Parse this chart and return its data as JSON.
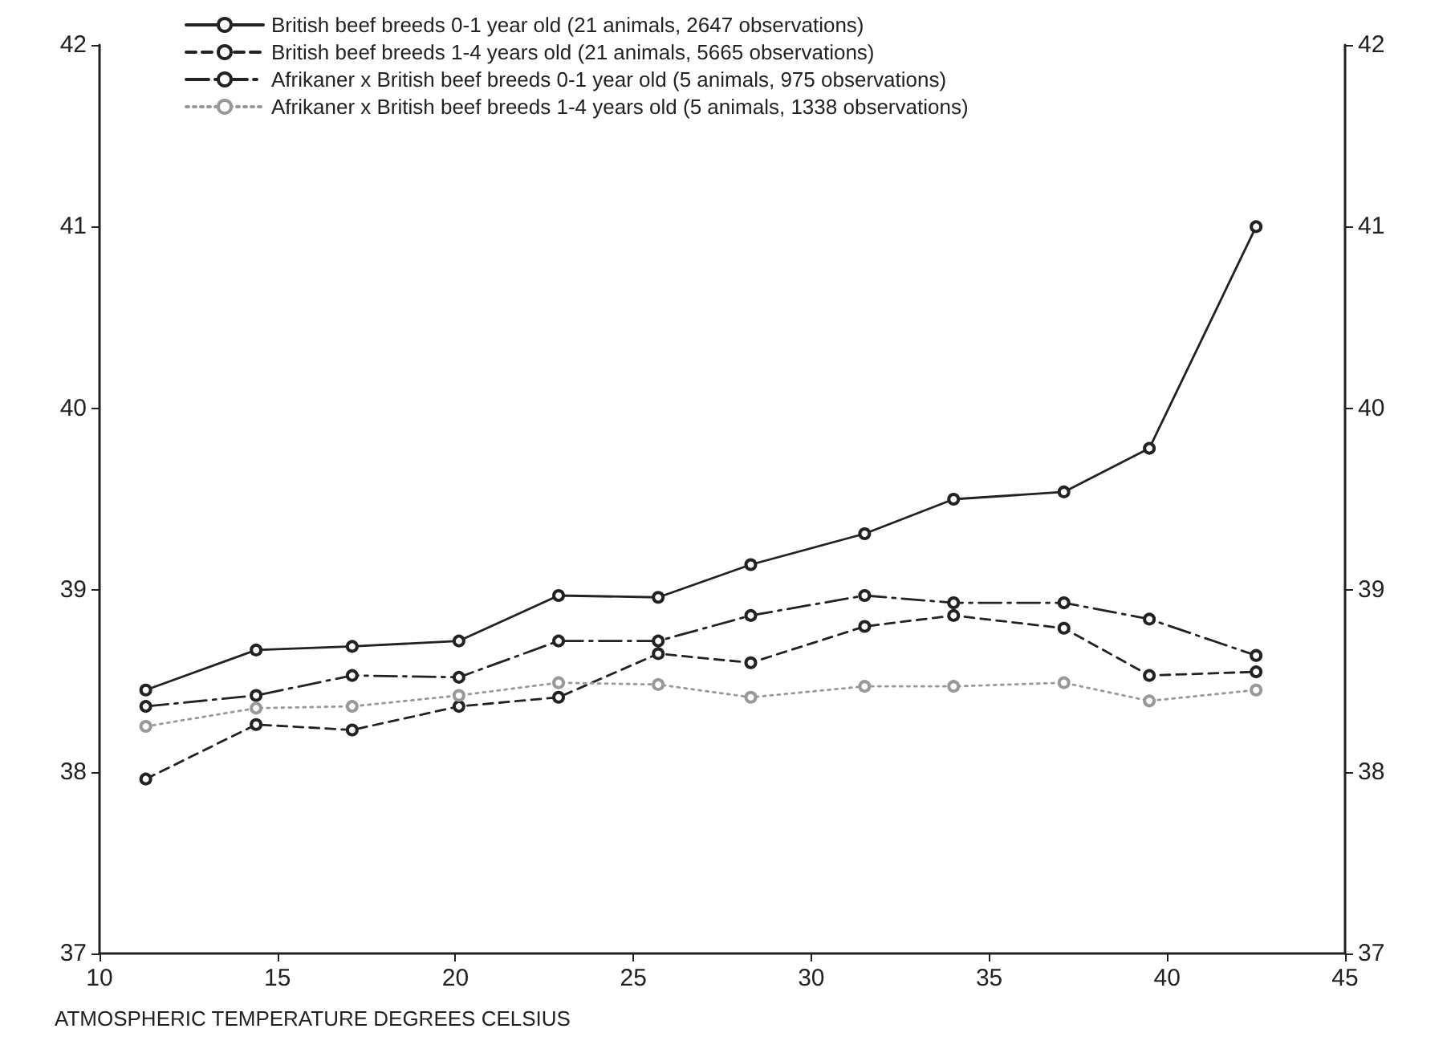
{
  "chart_data": {
    "type": "line",
    "xlabel": "ATMOSPHERIC TEMPERATURE DEGREES CELSIUS",
    "xlim": [
      10,
      45
    ],
    "xticks": [
      10,
      15,
      20,
      25,
      30,
      35,
      40,
      45
    ],
    "ylim": [
      37,
      42
    ],
    "yticks": [
      37,
      38,
      39,
      40,
      41,
      42
    ],
    "y2lim": [
      37,
      42
    ],
    "y2ticks": [
      37,
      38,
      39,
      40,
      41,
      42
    ],
    "x": [
      11.3,
      14.4,
      17.1,
      20.1,
      22.9,
      25.7,
      28.3,
      31.5,
      34.0,
      37.1,
      39.5,
      42.5
    ],
    "marker": "circle",
    "grid": false,
    "legend": "top left",
    "series": [
      {
        "name": "British beef breeds 0-1 year old (21 animals, 2647 observations)",
        "color": "#222222",
        "line_style": "solid",
        "values": [
          38.45,
          38.67,
          38.69,
          38.72,
          38.97,
          38.96,
          39.14,
          39.31,
          39.5,
          39.54,
          39.78,
          41.0
        ]
      },
      {
        "name": "British beef breeds 1-4 years old (21 animals, 5665 observations)",
        "color": "#222222",
        "line_style": "dashed",
        "values": [
          37.96,
          38.26,
          38.23,
          38.36,
          38.41,
          38.65,
          38.6,
          38.8,
          38.86,
          38.79,
          38.53,
          38.55
        ]
      },
      {
        "name": "Afrikaner x British beef breeds 0-1 year old (5 animals, 975 observations)",
        "color": "#222222",
        "line_style": "dashdot",
        "values": [
          38.36,
          38.42,
          38.53,
          38.52,
          38.72,
          38.72,
          38.86,
          38.97,
          38.93,
          38.93,
          38.84,
          38.64
        ]
      },
      {
        "name": "Afrikaner x British beef breeds 1-4 years old (5 animals, 1338 observations)",
        "color": "#999999",
        "line_style": "dotted",
        "values": [
          38.25,
          38.35,
          38.36,
          38.42,
          38.49,
          38.48,
          38.41,
          38.47,
          38.47,
          38.49,
          38.39,
          38.45
        ]
      }
    ]
  }
}
